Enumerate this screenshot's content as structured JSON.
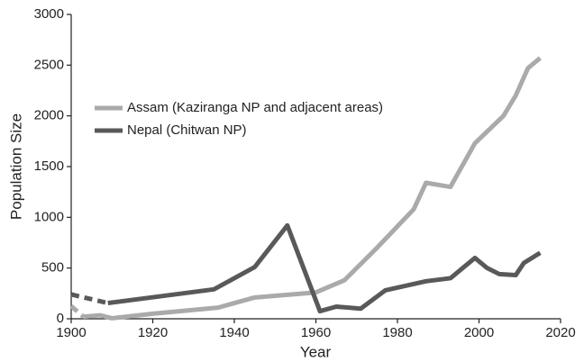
{
  "chart_data": {
    "type": "line",
    "xlabel": "Year",
    "ylabel": "Population Size",
    "xlim": [
      1900,
      2020
    ],
    "xticks": [
      1900,
      1920,
      1940,
      1960,
      1980,
      2000,
      2020
    ],
    "ylim": [
      0,
      3000
    ],
    "yticks": [
      0,
      500,
      1000,
      1500,
      2000,
      2500,
      3000
    ],
    "legend": "upper left",
    "series": [
      {
        "color": "#aaaaaa",
        "style": "dashed",
        "x": [
          1900,
          1903
        ],
        "values": [
          125,
          20
        ]
      },
      {
        "color": "#595959",
        "style": "dashed",
        "x": [
          1900,
          1909
        ],
        "values": [
          240,
          155
        ]
      },
      {
        "name": "Assam (Kaziranga NP and adjacent areas)",
        "color": "#aaaaaa",
        "style": "solid",
        "x": [
          1903,
          1907,
          1910,
          1920,
          1936,
          1945,
          1954,
          1960,
          1967,
          1975,
          1984,
          1987,
          1993,
          1999,
          2006,
          2009,
          2012,
          2015
        ],
        "values": [
          20,
          35,
          5,
          50,
          110,
          210,
          240,
          260,
          380,
          700,
          1080,
          1340,
          1300,
          1730,
          2000,
          2200,
          2470,
          2570
        ]
      },
      {
        "name": "Nepal (Chitwan NP)",
        "color": "#595959",
        "style": "solid",
        "x": [
          1909,
          1935,
          1945,
          1953,
          1961,
          1965,
          1971,
          1977,
          1987,
          1993,
          1999,
          2002,
          2005,
          2009,
          2011,
          2015
        ],
        "values": [
          155,
          290,
          510,
          920,
          75,
          120,
          100,
          280,
          370,
          400,
          600,
          500,
          440,
          430,
          550,
          650
        ]
      }
    ]
  }
}
